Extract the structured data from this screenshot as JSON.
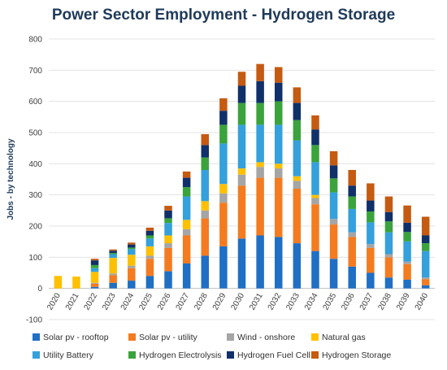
{
  "chart_data": {
    "type": "bar",
    "stacked": true,
    "title": "Power Sector Employment - Hydrogen Storage",
    "ylabel": "Jobs - by technology",
    "ylim": [
      -100,
      800
    ],
    "yticks": [
      -100,
      0,
      100,
      200,
      300,
      400,
      500,
      600,
      700,
      800
    ],
    "legend_position": "bottom",
    "categories": [
      "2020",
      "2021",
      "2022",
      "2023",
      "2024",
      "2025",
      "2026",
      "2027",
      "2028",
      "2029",
      "2030",
      "2031",
      "2032",
      "2033",
      "2034",
      "2035",
      "2036",
      "2037",
      "2038",
      "2039",
      "2040"
    ],
    "series": [
      {
        "name": "Solar pv - rooftop",
        "color": "#1f6fc5",
        "values": [
          0,
          0,
          5,
          18,
          25,
          40,
          55,
          80,
          105,
          135,
          160,
          170,
          165,
          145,
          120,
          95,
          70,
          50,
          35,
          28,
          10
        ]
      },
      {
        "name": "Solar pv - utility",
        "color": "#f47b20",
        "values": [
          0,
          0,
          10,
          25,
          40,
          55,
          75,
          90,
          120,
          140,
          170,
          185,
          190,
          175,
          150,
          110,
          95,
          80,
          65,
          50,
          20
        ]
      },
      {
        "name": "Wind - onshore",
        "color": "#a5a5a5",
        "values": [
          0,
          0,
          3,
          5,
          8,
          10,
          15,
          20,
          25,
          30,
          35,
          35,
          30,
          25,
          20,
          18,
          15,
          12,
          10,
          8,
          5
        ]
      },
      {
        "name": "Natural gas",
        "color": "#ffc000",
        "values": [
          40,
          38,
          35,
          50,
          35,
          30,
          25,
          30,
          30,
          30,
          20,
          15,
          15,
          15,
          10,
          0,
          0,
          0,
          0,
          0,
          0
        ]
      },
      {
        "name": "Utility Battery",
        "color": "#34a0dc",
        "values": [
          0,
          0,
          12,
          12,
          18,
          25,
          40,
          75,
          100,
          130,
          140,
          120,
          125,
          115,
          105,
          85,
          75,
          70,
          70,
          65,
          85
        ]
      },
      {
        "name": "Hydrogen Electrolysis",
        "color": "#3aa33c",
        "values": [
          0,
          0,
          10,
          4,
          5,
          10,
          15,
          30,
          40,
          60,
          70,
          70,
          75,
          65,
          55,
          45,
          40,
          35,
          35,
          30,
          25
        ]
      },
      {
        "name": "Hydrogen Fuel Cell",
        "color": "#10306a",
        "values": [
          0,
          0,
          15,
          7,
          10,
          15,
          25,
          30,
          40,
          45,
          55,
          70,
          60,
          55,
          50,
          42,
          35,
          35,
          30,
          30,
          25
        ]
      },
      {
        "name": "Hydrogen Storage",
        "color": "#c55a11",
        "values": [
          0,
          0,
          5,
          4,
          6,
          10,
          15,
          20,
          35,
          40,
          45,
          55,
          50,
          50,
          45,
          45,
          50,
          55,
          50,
          55,
          60
        ]
      }
    ]
  }
}
